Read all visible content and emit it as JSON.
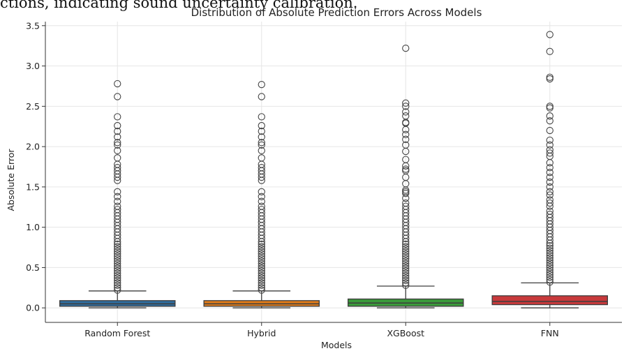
{
  "caption_fragment": "ctions, indicating sound uncertainty calibration.",
  "chart_data": {
    "type": "box",
    "title": "Distribution of Absolute Prediction Errors Across Models",
    "xlabel": "Models",
    "ylabel": "Absolute Error",
    "ylim": [
      -0.18,
      3.55
    ],
    "yticks": [
      0.0,
      0.5,
      1.0,
      1.5,
      2.0,
      2.5,
      3.0,
      3.5
    ],
    "grid": true,
    "categories": [
      "Random Forest",
      "Hybrid",
      "XGBoost",
      "FNN"
    ],
    "colors": [
      "#2f6d9e",
      "#e07b1a",
      "#3a9a3a",
      "#c8393b"
    ],
    "series": [
      {
        "q1": 0.02,
        "median": 0.05,
        "q3": 0.09,
        "whisker_low": 0.0,
        "whisker_high": 0.21,
        "outliers": [
          0.22,
          0.25,
          0.28,
          0.31,
          0.34,
          0.37,
          0.4,
          0.43,
          0.46,
          0.49,
          0.52,
          0.55,
          0.58,
          0.61,
          0.64,
          0.67,
          0.7,
          0.73,
          0.76,
          0.79,
          0.82,
          0.86,
          0.9,
          0.94,
          0.98,
          1.02,
          1.06,
          1.1,
          1.14,
          1.18,
          1.22,
          1.26,
          1.32,
          1.38,
          1.44,
          1.58,
          1.62,
          1.66,
          1.7,
          1.74,
          1.78,
          1.86,
          1.95,
          2.02,
          2.05,
          2.12,
          2.19,
          2.26,
          2.37,
          2.62,
          2.78
        ]
      },
      {
        "q1": 0.02,
        "median": 0.05,
        "q3": 0.09,
        "whisker_low": 0.0,
        "whisker_high": 0.21,
        "outliers": [
          0.22,
          0.25,
          0.28,
          0.31,
          0.34,
          0.37,
          0.4,
          0.43,
          0.46,
          0.49,
          0.52,
          0.55,
          0.58,
          0.61,
          0.64,
          0.67,
          0.7,
          0.73,
          0.76,
          0.79,
          0.82,
          0.86,
          0.9,
          0.94,
          0.98,
          1.02,
          1.06,
          1.1,
          1.14,
          1.18,
          1.22,
          1.26,
          1.32,
          1.38,
          1.44,
          1.58,
          1.62,
          1.66,
          1.7,
          1.74,
          1.78,
          1.86,
          1.95,
          2.02,
          2.05,
          2.12,
          2.19,
          2.26,
          2.37,
          2.62,
          2.77
        ]
      },
      {
        "q1": 0.02,
        "median": 0.06,
        "q3": 0.11,
        "whisker_low": 0.0,
        "whisker_high": 0.27,
        "outliers": [
          0.28,
          0.31,
          0.34,
          0.37,
          0.4,
          0.43,
          0.46,
          0.49,
          0.52,
          0.55,
          0.58,
          0.61,
          0.64,
          0.67,
          0.7,
          0.73,
          0.76,
          0.79,
          0.82,
          0.86,
          0.9,
          0.94,
          0.98,
          1.02,
          1.06,
          1.1,
          1.14,
          1.18,
          1.22,
          1.26,
          1.3,
          1.36,
          1.42,
          1.44,
          1.46,
          1.54,
          1.62,
          1.7,
          1.72,
          1.76,
          1.84,
          1.94,
          2.02,
          2.09,
          2.15,
          2.21,
          2.29,
          2.3,
          2.38,
          2.43,
          2.5,
          2.54,
          3.22
        ]
      },
      {
        "q1": 0.04,
        "median": 0.08,
        "q3": 0.15,
        "whisker_low": 0.0,
        "whisker_high": 0.31,
        "outliers": [
          0.32,
          0.35,
          0.38,
          0.41,
          0.44,
          0.47,
          0.5,
          0.53,
          0.56,
          0.59,
          0.62,
          0.65,
          0.68,
          0.71,
          0.74,
          0.77,
          0.8,
          0.84,
          0.88,
          0.92,
          0.96,
          1.0,
          1.04,
          1.08,
          1.12,
          1.16,
          1.2,
          1.26,
          1.3,
          1.34,
          1.4,
          1.44,
          1.5,
          1.56,
          1.62,
          1.68,
          1.74,
          1.8,
          1.88,
          1.92,
          1.96,
          2.02,
          2.08,
          2.2,
          2.32,
          2.38,
          2.48,
          2.5,
          2.84,
          2.86,
          3.18,
          3.39
        ]
      }
    ]
  }
}
